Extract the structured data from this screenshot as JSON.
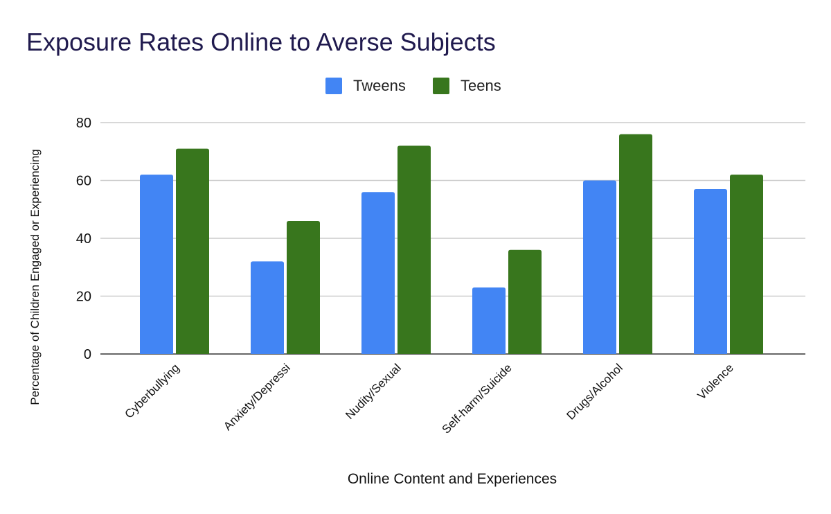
{
  "chart_data": {
    "type": "bar",
    "title": "Exposure Rates Online to Averse Subjects",
    "xlabel": "Online Content and Experiences",
    "ylabel": "Percentage of Children Engaged or Experiencing",
    "categories": [
      "Cyberbullying",
      "Anxiety/Depressi",
      "Nudity/Sexual",
      "Self-harm/Suicide",
      "Drugs/Alcohol",
      "Violence"
    ],
    "series": [
      {
        "name": "Tweens",
        "color": "#4285f4",
        "values": [
          62,
          32,
          56,
          23,
          60,
          57
        ]
      },
      {
        "name": "Teens",
        "color": "#38761d",
        "values": [
          71,
          46,
          72,
          36,
          76,
          62
        ]
      }
    ],
    "ylim": [
      0,
      80
    ],
    "yticks": [
      0,
      20,
      40,
      60,
      80
    ],
    "grid": true,
    "legend_position": "top-center"
  }
}
